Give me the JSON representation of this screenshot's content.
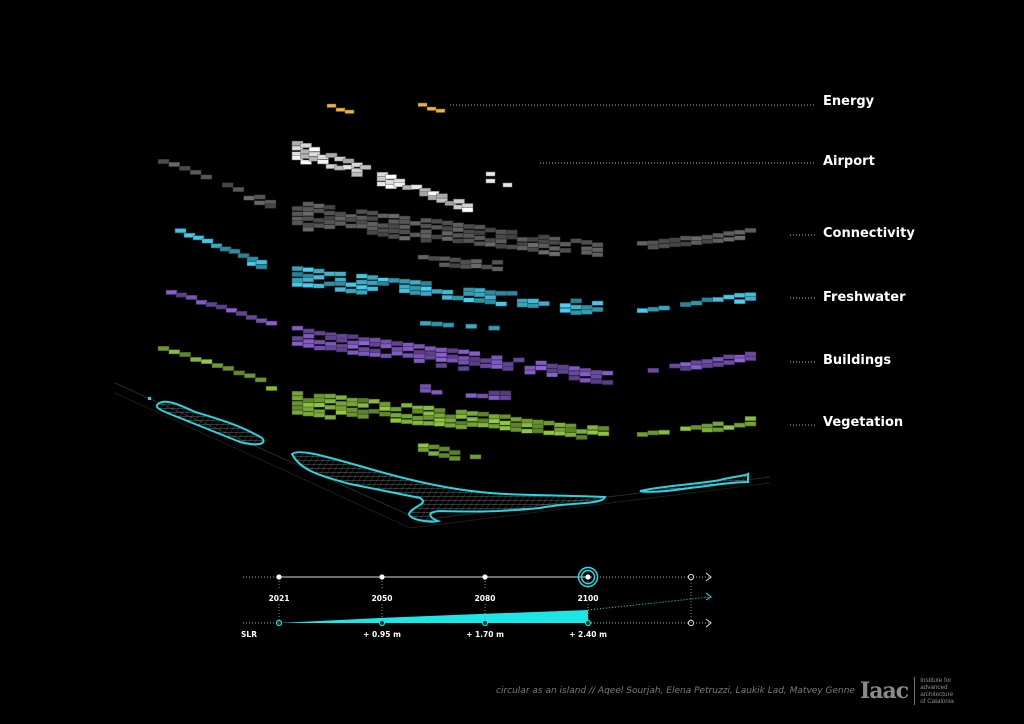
{
  "layers": [
    {
      "id": "energy",
      "label": "Energy",
      "color": "#e8b53a"
    },
    {
      "id": "airport",
      "label": "Airport",
      "color": "#e8e8e8"
    },
    {
      "id": "connectivity",
      "label": "Connectivity",
      "color": "#5e5e5e"
    },
    {
      "id": "freshwater",
      "label": "Freshwater",
      "color": "#3fb8d4"
    },
    {
      "id": "buildings",
      "label": "Buildings",
      "color": "#7b57b8"
    },
    {
      "id": "vegetation",
      "label": "Vegetation",
      "color": "#7fb13c"
    }
  ],
  "island": {
    "outline_color": "#2ad4e0",
    "mesh_color": "#9a9a9a"
  },
  "timeline": {
    "years": [
      "2021",
      "2050",
      "2080",
      "2100"
    ],
    "current_year": "2100",
    "slr_label": "SLR",
    "slr_values": [
      "+ 0.95 m",
      "+ 1.70 m",
      "+ 2.40 m"
    ],
    "slr_meters": [
      0,
      0.95,
      1.7,
      2.4
    ],
    "accent_color": "#1fe6e6"
  },
  "footer": {
    "credit": "circular as an island // Aqeel Sourjah, Elena Petruzzi, Laukik Lad, Matvey Genne",
    "logo_mark": "Iaac",
    "logo_lines": [
      "Institute for",
      "advanced",
      "architecture",
      "of Catalonia"
    ]
  }
}
